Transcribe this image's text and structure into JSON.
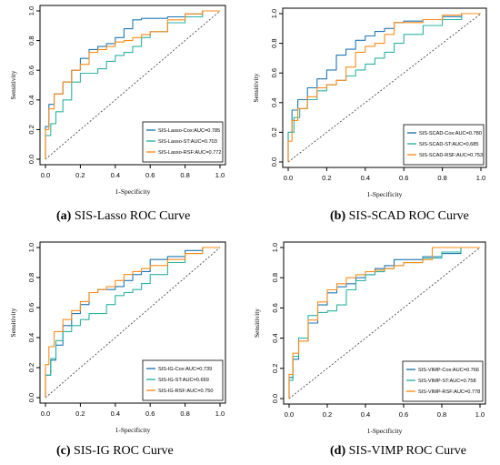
{
  "chart_data": [
    {
      "type": "line",
      "caption_label": "(a)",
      "caption_text": "SIS-Lasso ROC Curve",
      "xlabel": "1-Specificity",
      "ylabel": "Sensitivity",
      "xlim": [
        0,
        1
      ],
      "ylim": [
        0,
        1
      ],
      "x_ticks": [
        "0.0",
        "0.2",
        "0.4",
        "0.6",
        "0.8",
        "1.0"
      ],
      "y_ticks": [
        "0.0",
        "0.2",
        "0.4",
        "0.6",
        "0.8",
        "1.0"
      ],
      "legend_position": "bottom-right",
      "diagonal": true,
      "series": [
        {
          "name": "SIS-Lasso-Cox:AUC=0.785",
          "color": "#1f77b4",
          "points": [
            [
              0,
              0
            ],
            [
              0.02,
              0.22
            ],
            [
              0.05,
              0.37
            ],
            [
              0.1,
              0.44
            ],
            [
              0.15,
              0.52
            ],
            [
              0.2,
              0.6
            ],
            [
              0.25,
              0.68
            ],
            [
              0.3,
              0.74
            ],
            [
              0.35,
              0.76
            ],
            [
              0.4,
              0.78
            ],
            [
              0.45,
              0.82
            ],
            [
              0.5,
              0.88
            ],
            [
              0.55,
              0.94
            ],
            [
              0.6,
              0.95
            ],
            [
              0.7,
              0.95
            ],
            [
              0.8,
              0.96
            ],
            [
              0.9,
              0.98
            ],
            [
              1,
              1
            ]
          ]
        },
        {
          "name": "SIS-Lasso-ST:AUC=0.703",
          "color": "#2bb3a4",
          "points": [
            [
              0,
              0
            ],
            [
              0.03,
              0.16
            ],
            [
              0.06,
              0.24
            ],
            [
              0.1,
              0.32
            ],
            [
              0.15,
              0.4
            ],
            [
              0.2,
              0.52
            ],
            [
              0.25,
              0.58
            ],
            [
              0.3,
              0.58
            ],
            [
              0.35,
              0.61
            ],
            [
              0.4,
              0.66
            ],
            [
              0.45,
              0.7
            ],
            [
              0.5,
              0.72
            ],
            [
              0.55,
              0.76
            ],
            [
              0.6,
              0.82
            ],
            [
              0.7,
              0.86
            ],
            [
              0.8,
              0.92
            ],
            [
              0.9,
              0.96
            ],
            [
              1,
              1
            ]
          ]
        },
        {
          "name": "SIS-Lasso-RSF:AUC=0.772",
          "color": "#ff8c1a",
          "points": [
            [
              0,
              0
            ],
            [
              0.02,
              0.2
            ],
            [
              0.05,
              0.34
            ],
            [
              0.1,
              0.44
            ],
            [
              0.15,
              0.52
            ],
            [
              0.2,
              0.6
            ],
            [
              0.25,
              0.64
            ],
            [
              0.3,
              0.72
            ],
            [
              0.35,
              0.74
            ],
            [
              0.4,
              0.76
            ],
            [
              0.45,
              0.79
            ],
            [
              0.5,
              0.8
            ],
            [
              0.55,
              0.82
            ],
            [
              0.6,
              0.84
            ],
            [
              0.7,
              0.86
            ],
            [
              0.8,
              0.94
            ],
            [
              0.9,
              0.98
            ],
            [
              1,
              1
            ]
          ]
        }
      ]
    },
    {
      "type": "line",
      "caption_label": "(b)",
      "caption_text": "SIS-SCAD ROC Curve",
      "xlabel": "1-Specificity",
      "ylabel": "Sensitivity",
      "xlim": [
        0,
        1
      ],
      "ylim": [
        0,
        1
      ],
      "x_ticks": [
        "0.0",
        "0.2",
        "0.4",
        "0.6",
        "0.8",
        "1.0"
      ],
      "y_ticks": [
        "0.0",
        "0.2",
        "0.4",
        "0.6",
        "0.8",
        "1.0"
      ],
      "legend_position": "bottom-right",
      "diagonal": true,
      "series": [
        {
          "name": "SIS-SCAD-Cox:AUC=0.780",
          "color": "#1f77b4",
          "points": [
            [
              0,
              0
            ],
            [
              0.02,
              0.2
            ],
            [
              0.05,
              0.35
            ],
            [
              0.1,
              0.42
            ],
            [
              0.15,
              0.5
            ],
            [
              0.2,
              0.56
            ],
            [
              0.25,
              0.62
            ],
            [
              0.3,
              0.72
            ],
            [
              0.35,
              0.76
            ],
            [
              0.4,
              0.82
            ],
            [
              0.45,
              0.85
            ],
            [
              0.5,
              0.88
            ],
            [
              0.55,
              0.9
            ],
            [
              0.6,
              0.94
            ],
            [
              0.7,
              0.95
            ],
            [
              0.8,
              0.96
            ],
            [
              0.9,
              0.98
            ],
            [
              1,
              1
            ]
          ]
        },
        {
          "name": "SIS-SCAD-ST:AUC=0.685",
          "color": "#2bb3a4",
          "points": [
            [
              0,
              0
            ],
            [
              0.03,
              0.2
            ],
            [
              0.06,
              0.3
            ],
            [
              0.1,
              0.36
            ],
            [
              0.15,
              0.42
            ],
            [
              0.2,
              0.48
            ],
            [
              0.25,
              0.52
            ],
            [
              0.3,
              0.55
            ],
            [
              0.35,
              0.58
            ],
            [
              0.4,
              0.62
            ],
            [
              0.45,
              0.66
            ],
            [
              0.5,
              0.7
            ],
            [
              0.55,
              0.74
            ],
            [
              0.6,
              0.8
            ],
            [
              0.7,
              0.86
            ],
            [
              0.8,
              0.92
            ],
            [
              0.9,
              0.96
            ],
            [
              1,
              1
            ]
          ]
        },
        {
          "name": "SIS-SCAD-RSF:AUC=0.753",
          "color": "#ff8c1a",
          "points": [
            [
              0,
              0
            ],
            [
              0.02,
              0.14
            ],
            [
              0.05,
              0.28
            ],
            [
              0.1,
              0.36
            ],
            [
              0.15,
              0.44
            ],
            [
              0.2,
              0.5
            ],
            [
              0.25,
              0.52
            ],
            [
              0.3,
              0.55
            ],
            [
              0.35,
              0.64
            ],
            [
              0.4,
              0.74
            ],
            [
              0.45,
              0.78
            ],
            [
              0.5,
              0.8
            ],
            [
              0.55,
              0.86
            ],
            [
              0.6,
              0.94
            ],
            [
              0.7,
              0.94
            ],
            [
              0.8,
              0.96
            ],
            [
              0.9,
              0.99
            ],
            [
              1,
              1
            ]
          ]
        }
      ]
    },
    {
      "type": "line",
      "caption_label": "(c)",
      "caption_text": "SIS-IG ROC Curve",
      "xlabel": "1-Specificity",
      "ylabel": "Sensitivity",
      "xlim": [
        0,
        1
      ],
      "ylim": [
        0,
        1
      ],
      "x_ticks": [
        "0.0",
        "0.2",
        "0.4",
        "0.6",
        "0.8",
        "1.0"
      ],
      "y_ticks": [
        "0.0",
        "0.2",
        "0.4",
        "0.6",
        "0.8",
        "1.0"
      ],
      "legend_position": "bottom-right",
      "diagonal": true,
      "series": [
        {
          "name": "SIS-IG-Cox:AUC=0.739",
          "color": "#1f77b4",
          "points": [
            [
              0,
              0
            ],
            [
              0.03,
              0.15
            ],
            [
              0.06,
              0.25
            ],
            [
              0.1,
              0.35
            ],
            [
              0.15,
              0.48
            ],
            [
              0.2,
              0.56
            ],
            [
              0.25,
              0.62
            ],
            [
              0.3,
              0.7
            ],
            [
              0.35,
              0.72
            ],
            [
              0.4,
              0.72
            ],
            [
              0.45,
              0.74
            ],
            [
              0.5,
              0.78
            ],
            [
              0.55,
              0.82
            ],
            [
              0.6,
              0.84
            ],
            [
              0.7,
              0.92
            ],
            [
              0.8,
              0.94
            ],
            [
              0.9,
              0.98
            ],
            [
              1,
              1
            ]
          ]
        },
        {
          "name": "SIS-IG-ST:AUC=0.669",
          "color": "#2bb3a4",
          "points": [
            [
              0,
              0
            ],
            [
              0.03,
              0.15
            ],
            [
              0.06,
              0.26
            ],
            [
              0.1,
              0.38
            ],
            [
              0.15,
              0.44
            ],
            [
              0.2,
              0.48
            ],
            [
              0.25,
              0.52
            ],
            [
              0.3,
              0.56
            ],
            [
              0.35,
              0.56
            ],
            [
              0.4,
              0.62
            ],
            [
              0.45,
              0.68
            ],
            [
              0.5,
              0.7
            ],
            [
              0.55,
              0.72
            ],
            [
              0.6,
              0.76
            ],
            [
              0.7,
              0.82
            ],
            [
              0.8,
              0.9
            ],
            [
              0.9,
              0.96
            ],
            [
              1,
              1
            ]
          ]
        },
        {
          "name": "SIS-IG-RSF:AUC=0.750",
          "color": "#ff8c1a",
          "points": [
            [
              0,
              0
            ],
            [
              0.02,
              0.22
            ],
            [
              0.05,
              0.34
            ],
            [
              0.1,
              0.44
            ],
            [
              0.15,
              0.52
            ],
            [
              0.2,
              0.58
            ],
            [
              0.25,
              0.64
            ],
            [
              0.3,
              0.7
            ],
            [
              0.35,
              0.72
            ],
            [
              0.4,
              0.74
            ],
            [
              0.45,
              0.78
            ],
            [
              0.5,
              0.82
            ],
            [
              0.55,
              0.84
            ],
            [
              0.6,
              0.86
            ],
            [
              0.7,
              0.88
            ],
            [
              0.8,
              0.92
            ],
            [
              0.9,
              0.96
            ],
            [
              1,
              1
            ]
          ]
        }
      ]
    },
    {
      "type": "line",
      "caption_label": "(d)",
      "caption_text": "SIS-VIMP ROC Curve",
      "xlabel": "1-Specificity",
      "ylabel": "Sensitivity",
      "xlim": [
        0,
        1
      ],
      "ylim": [
        0,
        1
      ],
      "x_ticks": [
        "0.0",
        "0.2",
        "0.4",
        "0.6",
        "0.8",
        "1.0"
      ],
      "y_ticks": [
        "0.0",
        "0.2",
        "0.4",
        "0.6",
        "0.8",
        "1.0"
      ],
      "legend_position": "bottom-right",
      "diagonal": true,
      "series": [
        {
          "name": "SIS-VIMP-Cox:AUC=0.766",
          "color": "#1f77b4",
          "points": [
            [
              0,
              0
            ],
            [
              0.02,
              0.14
            ],
            [
              0.05,
              0.26
            ],
            [
              0.1,
              0.38
            ],
            [
              0.15,
              0.5
            ],
            [
              0.2,
              0.62
            ],
            [
              0.25,
              0.7
            ],
            [
              0.3,
              0.74
            ],
            [
              0.35,
              0.76
            ],
            [
              0.4,
              0.8
            ],
            [
              0.45,
              0.82
            ],
            [
              0.5,
              0.86
            ],
            [
              0.55,
              0.88
            ],
            [
              0.6,
              0.92
            ],
            [
              0.7,
              0.92
            ],
            [
              0.8,
              0.94
            ],
            [
              0.9,
              0.96
            ],
            [
              1,
              1
            ]
          ]
        },
        {
          "name": "SIS-VIMP-ST:AUC=0.758",
          "color": "#2bb3a4",
          "points": [
            [
              0,
              0
            ],
            [
              0.02,
              0.12
            ],
            [
              0.05,
              0.28
            ],
            [
              0.1,
              0.4
            ],
            [
              0.15,
              0.55
            ],
            [
              0.2,
              0.57
            ],
            [
              0.25,
              0.58
            ],
            [
              0.3,
              0.62
            ],
            [
              0.35,
              0.72
            ],
            [
              0.4,
              0.78
            ],
            [
              0.45,
              0.82
            ],
            [
              0.5,
              0.84
            ],
            [
              0.55,
              0.86
            ],
            [
              0.6,
              0.88
            ],
            [
              0.7,
              0.9
            ],
            [
              0.8,
              0.93
            ],
            [
              0.9,
              0.97
            ],
            [
              1,
              1
            ]
          ]
        },
        {
          "name": "SIS-VIMP-RSF:AUC=0.778",
          "color": "#ff8c1a",
          "points": [
            [
              0,
              0
            ],
            [
              0.02,
              0.16
            ],
            [
              0.05,
              0.3
            ],
            [
              0.1,
              0.38
            ],
            [
              0.15,
              0.52
            ],
            [
              0.2,
              0.64
            ],
            [
              0.25,
              0.72
            ],
            [
              0.3,
              0.76
            ],
            [
              0.35,
              0.8
            ],
            [
              0.4,
              0.82
            ],
            [
              0.45,
              0.84
            ],
            [
              0.5,
              0.85
            ],
            [
              0.55,
              0.86
            ],
            [
              0.6,
              0.88
            ],
            [
              0.7,
              0.9
            ],
            [
              0.75,
              0.92
            ],
            [
              0.8,
              1
            ],
            [
              1,
              1
            ]
          ]
        }
      ]
    }
  ]
}
